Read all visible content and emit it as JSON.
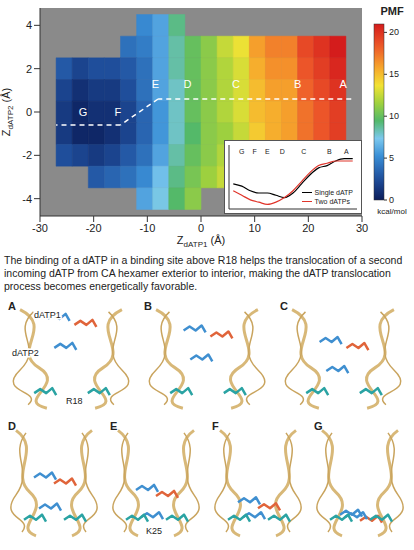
{
  "chart_data": [
    {
      "type": "heatmap",
      "x_label": "ZdATP1 (Å)",
      "y_label": "ZdATP2 (Å)",
      "xlim": [
        -30,
        30
      ],
      "xticks": [
        -30,
        -20,
        -10,
        0,
        10,
        20,
        30
      ],
      "ylim": [
        -4.8,
        4.8
      ],
      "yticks": [
        -4,
        -2,
        0,
        2,
        4
      ],
      "x": [
        -25.5,
        -22.5,
        -19.5,
        -16.5,
        -13.5,
        -10.5,
        -7.5,
        -4.5,
        -1.5,
        1.5,
        4.5,
        7.5,
        10.5,
        13.5,
        16.5,
        19.5,
        22.5,
        25.5
      ],
      "y": [
        4,
        3,
        2,
        1,
        0,
        -1,
        -2,
        -3,
        -4
      ],
      "values": [
        [
          null,
          null,
          null,
          null,
          null,
          5,
          6,
          9,
          null,
          null,
          null,
          null,
          null,
          null,
          null,
          null,
          null,
          null
        ],
        [
          null,
          null,
          null,
          null,
          4,
          4.5,
          6,
          8.5,
          10,
          11,
          12.5,
          13.5,
          16,
          17,
          17,
          19,
          20,
          21
        ],
        [
          3,
          2,
          2.5,
          2.5,
          3,
          4,
          6,
          8.5,
          10,
          11,
          12,
          13,
          15.5,
          16.5,
          16.5,
          18.5,
          19.5,
          20.5
        ],
        [
          2,
          1,
          1.5,
          1.5,
          2.5,
          4,
          6,
          8,
          10,
          11,
          12,
          13,
          15,
          16,
          16,
          18,
          19,
          20
        ],
        [
          1.5,
          0.5,
          1,
          1,
          2,
          3.5,
          5.5,
          8,
          10,
          11,
          12,
          13,
          15,
          15.5,
          16,
          17.5,
          18.5,
          19.5
        ],
        [
          1.5,
          0.5,
          0.5,
          1,
          2,
          3.5,
          5.5,
          8,
          9.5,
          11,
          11.5,
          12.5,
          14.5,
          15.5,
          16,
          17.5,
          18.5,
          19.5
        ],
        [
          2.5,
          2,
          1.5,
          2,
          3,
          4,
          6,
          8.5,
          10,
          11,
          12,
          13,
          15,
          16,
          16.5,
          18,
          19,
          20
        ],
        [
          null,
          null,
          3,
          3.5,
          4,
          5,
          7,
          9,
          10.5,
          11.5,
          12.5,
          13.5,
          16,
          16.5,
          17,
          19,
          null,
          null
        ],
        [
          null,
          null,
          null,
          null,
          null,
          6,
          7.5,
          9.5,
          11,
          null,
          null,
          null,
          16.5,
          null,
          null,
          null,
          null,
          null
        ]
      ],
      "colorbar": {
        "label": "PMF",
        "unit": "kcal/mol",
        "range": [
          0,
          21
        ],
        "ticks": [
          0,
          5,
          10,
          15,
          20
        ]
      },
      "path": {
        "x": [
          28,
          -8,
          -15,
          -27
        ],
        "y": [
          0.6,
          0.6,
          -0.6,
          -0.6
        ],
        "line_style": "dashed",
        "color": "#ffffff"
      },
      "path_labels": [
        {
          "label": "A",
          "x": 26.5,
          "y": 1.3
        },
        {
          "label": "B",
          "x": 18,
          "y": 1.3
        },
        {
          "label": "C",
          "x": 6.5,
          "y": 1.3
        },
        {
          "label": "D",
          "x": -2.5,
          "y": 1.3
        },
        {
          "label": "E",
          "x": -8.5,
          "y": 1.3
        },
        {
          "label": "F",
          "x": -15.5,
          "y": 0
        },
        {
          "label": "G",
          "x": -22,
          "y": 0
        }
      ]
    },
    {
      "type": "line",
      "xlim": [
        -30,
        30
      ],
      "ylim": [
        -2,
        26
      ],
      "tick_labels": false,
      "legend": "lower right",
      "x": [
        -28,
        -24,
        -20,
        -16,
        -12,
        -8,
        -4,
        0,
        4,
        8,
        12,
        16,
        20,
        24,
        28
      ],
      "series": [
        {
          "name": "Single dATP",
          "color": "#000000",
          "values": [
            9,
            8,
            6,
            5,
            5,
            4,
            3,
            5,
            9,
            13,
            16,
            17,
            19,
            20,
            20
          ]
        },
        {
          "name": "Two dATPs",
          "color": "#e0352b",
          "values": [
            6,
            4,
            2,
            1,
            0,
            1,
            3,
            6,
            10,
            14,
            17,
            18,
            19,
            19,
            19
          ]
        }
      ],
      "point_labels": [
        {
          "label": "G",
          "x": -24,
          "y": 23
        },
        {
          "label": "F",
          "x": -18,
          "y": 23
        },
        {
          "label": "E",
          "x": -12,
          "y": 23
        },
        {
          "label": "D",
          "x": -5,
          "y": 23
        },
        {
          "label": "C",
          "x": 5,
          "y": 23
        },
        {
          "label": "B",
          "x": 17,
          "y": 23
        },
        {
          "label": "A",
          "x": 25,
          "y": 23
        }
      ]
    }
  ],
  "caption": "The binding of a dATP in a binding site above R18 helps the translocation of a second incoming dATP from CA hexamer exterior to interior, making the dATP translocation process becomes energetically favorable.",
  "panels": [
    {
      "label": "A",
      "annotations": [
        "dATP1",
        "dATP2",
        "R18"
      ]
    },
    {
      "label": "B",
      "annotations": []
    },
    {
      "label": "C",
      "annotations": []
    },
    {
      "label": "D",
      "annotations": []
    },
    {
      "label": "E",
      "annotations": [
        "K25"
      ]
    },
    {
      "label": "F",
      "annotations": []
    },
    {
      "label": "G",
      "annotations": []
    }
  ]
}
